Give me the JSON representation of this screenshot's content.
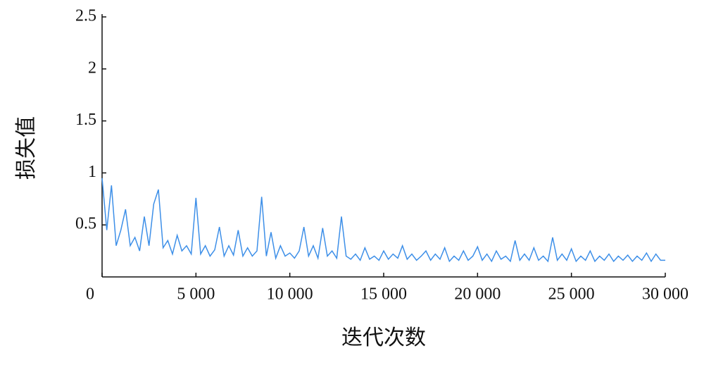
{
  "chart_data": {
    "type": "line",
    "xlabel": "迭代次数",
    "ylabel": "损失值",
    "color": "#3d8fe8",
    "xlim": [
      0,
      30000
    ],
    "ylim": [
      0,
      2.5
    ],
    "xticks": [
      0,
      {
        "value": 5000,
        "label": "5 000"
      },
      {
        "value": 10000,
        "label": "10 000"
      },
      {
        "value": 15000,
        "label": "15 000"
      },
      {
        "value": 20000,
        "label": "20 000"
      },
      {
        "value": 25000,
        "label": "25 000"
      },
      {
        "value": 30000,
        "label": "30 000"
      }
    ],
    "yticks": [
      0.5,
      1,
      1.5,
      2,
      2.5
    ],
    "x": [
      0,
      250,
      500,
      750,
      1000,
      1250,
      1500,
      1750,
      2000,
      2250,
      2500,
      2750,
      3000,
      3250,
      3500,
      3750,
      4000,
      4250,
      4500,
      4750,
      5000,
      5250,
      5500,
      5750,
      6000,
      6250,
      6500,
      6750,
      7000,
      7250,
      7500,
      7750,
      8000,
      8250,
      8500,
      8750,
      9000,
      9250,
      9500,
      9750,
      10000,
      10250,
      10500,
      10750,
      11000,
      11250,
      11500,
      11750,
      12000,
      12250,
      12500,
      12750,
      13000,
      13250,
      13500,
      13750,
      14000,
      14250,
      14500,
      14750,
      15000,
      15250,
      15500,
      15750,
      16000,
      16250,
      16500,
      16750,
      17000,
      17250,
      17500,
      17750,
      18000,
      18250,
      18500,
      18750,
      19000,
      19250,
      19500,
      19750,
      20000,
      20250,
      20500,
      20750,
      21000,
      21250,
      21500,
      21750,
      22000,
      22250,
      22500,
      22750,
      23000,
      23250,
      23500,
      23750,
      24000,
      24250,
      24500,
      24750,
      25000,
      25250,
      25500,
      25750,
      26000,
      26250,
      26500,
      26750,
      27000,
      27250,
      27500,
      27750,
      28000,
      28250,
      28500,
      28750,
      29000,
      29250,
      29500,
      29750,
      30000
    ],
    "values": [
      0.95,
      0.45,
      0.88,
      0.3,
      0.45,
      0.65,
      0.3,
      0.38,
      0.25,
      0.58,
      0.3,
      0.7,
      0.84,
      0.28,
      0.35,
      0.22,
      0.4,
      0.25,
      0.3,
      0.22,
      0.76,
      0.22,
      0.3,
      0.2,
      0.26,
      0.48,
      0.2,
      0.3,
      0.21,
      0.45,
      0.2,
      0.28,
      0.2,
      0.25,
      0.77,
      0.2,
      0.43,
      0.18,
      0.3,
      0.2,
      0.23,
      0.18,
      0.25,
      0.48,
      0.2,
      0.3,
      0.18,
      0.47,
      0.2,
      0.25,
      0.18,
      0.58,
      0.2,
      0.17,
      0.22,
      0.16,
      0.28,
      0.17,
      0.2,
      0.16,
      0.25,
      0.17,
      0.22,
      0.18,
      0.3,
      0.17,
      0.22,
      0.16,
      0.2,
      0.25,
      0.16,
      0.22,
      0.17,
      0.28,
      0.15,
      0.2,
      0.16,
      0.25,
      0.16,
      0.2,
      0.29,
      0.16,
      0.22,
      0.15,
      0.25,
      0.17,
      0.2,
      0.15,
      0.35,
      0.16,
      0.22,
      0.16,
      0.28,
      0.16,
      0.2,
      0.15,
      0.38,
      0.16,
      0.22,
      0.16,
      0.27,
      0.15,
      0.2,
      0.16,
      0.25,
      0.15,
      0.2,
      0.16,
      0.22,
      0.15,
      0.2,
      0.16,
      0.21,
      0.15,
      0.2,
      0.16,
      0.23,
      0.15,
      0.22,
      0.16,
      0.16
    ]
  }
}
